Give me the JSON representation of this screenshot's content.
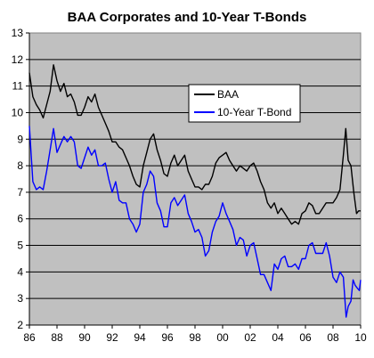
{
  "chart_data": {
    "type": "line",
    "title": "BAA Corporates and 10-Year T-Bonds",
    "xlabel": "",
    "ylabel": "",
    "x_ticks": [
      "86",
      "88",
      "90",
      "92",
      "94",
      "96",
      "98",
      "00",
      "02",
      "04",
      "06",
      "08",
      "10"
    ],
    "y_ticks": [
      "2",
      "3",
      "4",
      "5",
      "6",
      "7",
      "8",
      "9",
      "10",
      "11",
      "12",
      "13"
    ],
    "xlim": [
      1986,
      2010
    ],
    "ylim": [
      2,
      13
    ],
    "grid": "horizontal",
    "plot_background": "#c0c0c0",
    "legend_position": "upper-right",
    "series": [
      {
        "name": "BAA",
        "color": "#000000",
        "points": [
          [
            1986.0,
            11.5
          ],
          [
            1986.25,
            10.6
          ],
          [
            1986.5,
            10.3
          ],
          [
            1986.75,
            10.1
          ],
          [
            1987.0,
            9.8
          ],
          [
            1987.25,
            10.3
          ],
          [
            1987.5,
            10.8
          ],
          [
            1987.75,
            11.8
          ],
          [
            1988.0,
            11.2
          ],
          [
            1988.25,
            10.8
          ],
          [
            1988.5,
            11.1
          ],
          [
            1988.75,
            10.6
          ],
          [
            1989.0,
            10.7
          ],
          [
            1989.25,
            10.4
          ],
          [
            1989.5,
            9.9
          ],
          [
            1989.75,
            9.9
          ],
          [
            1990.0,
            10.2
          ],
          [
            1990.25,
            10.6
          ],
          [
            1990.5,
            10.4
          ],
          [
            1990.75,
            10.7
          ],
          [
            1991.0,
            10.2
          ],
          [
            1991.25,
            9.9
          ],
          [
            1991.5,
            9.6
          ],
          [
            1991.75,
            9.3
          ],
          [
            1992.0,
            8.9
          ],
          [
            1992.25,
            8.9
          ],
          [
            1992.5,
            8.7
          ],
          [
            1992.75,
            8.6
          ],
          [
            1993.0,
            8.3
          ],
          [
            1993.25,
            8.0
          ],
          [
            1993.5,
            7.6
          ],
          [
            1993.75,
            7.3
          ],
          [
            1994.0,
            7.2
          ],
          [
            1994.25,
            8.0
          ],
          [
            1994.5,
            8.5
          ],
          [
            1994.75,
            9.0
          ],
          [
            1995.0,
            9.2
          ],
          [
            1995.25,
            8.6
          ],
          [
            1995.5,
            8.2
          ],
          [
            1995.75,
            7.7
          ],
          [
            1996.0,
            7.6
          ],
          [
            1996.25,
            8.1
          ],
          [
            1996.5,
            8.4
          ],
          [
            1996.75,
            8.0
          ],
          [
            1997.0,
            8.2
          ],
          [
            1997.25,
            8.4
          ],
          [
            1997.5,
            7.8
          ],
          [
            1997.75,
            7.5
          ],
          [
            1998.0,
            7.2
          ],
          [
            1998.25,
            7.2
          ],
          [
            1998.5,
            7.1
          ],
          [
            1998.75,
            7.3
          ],
          [
            1999.0,
            7.3
          ],
          [
            1999.25,
            7.6
          ],
          [
            1999.5,
            8.1
          ],
          [
            1999.75,
            8.3
          ],
          [
            2000.0,
            8.4
          ],
          [
            2000.25,
            8.5
          ],
          [
            2000.5,
            8.2
          ],
          [
            2000.75,
            8.0
          ],
          [
            2001.0,
            7.8
          ],
          [
            2001.25,
            8.0
          ],
          [
            2001.5,
            7.9
          ],
          [
            2001.75,
            7.8
          ],
          [
            2002.0,
            8.0
          ],
          [
            2002.25,
            8.1
          ],
          [
            2002.5,
            7.8
          ],
          [
            2002.75,
            7.4
          ],
          [
            2003.0,
            7.1
          ],
          [
            2003.25,
            6.6
          ],
          [
            2003.5,
            6.4
          ],
          [
            2003.75,
            6.6
          ],
          [
            2004.0,
            6.2
          ],
          [
            2004.25,
            6.4
          ],
          [
            2004.5,
            6.2
          ],
          [
            2004.75,
            6.0
          ],
          [
            2005.0,
            5.8
          ],
          [
            2005.25,
            5.9
          ],
          [
            2005.5,
            5.8
          ],
          [
            2005.75,
            6.2
          ],
          [
            2006.0,
            6.3
          ],
          [
            2006.25,
            6.6
          ],
          [
            2006.5,
            6.5
          ],
          [
            2006.75,
            6.2
          ],
          [
            2007.0,
            6.2
          ],
          [
            2007.25,
            6.4
          ],
          [
            2007.5,
            6.6
          ],
          [
            2007.75,
            6.6
          ],
          [
            2008.0,
            6.6
          ],
          [
            2008.25,
            6.8
          ],
          [
            2008.5,
            7.1
          ],
          [
            2008.75,
            8.4
          ],
          [
            2008.92,
            9.4
          ],
          [
            2009.1,
            8.2
          ],
          [
            2009.3,
            8.0
          ],
          [
            2009.5,
            7.0
          ],
          [
            2009.7,
            6.2
          ],
          [
            2009.85,
            6.3
          ],
          [
            2010.0,
            6.3
          ]
        ]
      },
      {
        "name": "10-Year T-Bond",
        "color": "#0000ff",
        "points": [
          [
            1986.0,
            9.5
          ],
          [
            1986.25,
            7.4
          ],
          [
            1986.5,
            7.1
          ],
          [
            1986.75,
            7.2
          ],
          [
            1987.0,
            7.1
          ],
          [
            1987.25,
            7.8
          ],
          [
            1987.5,
            8.6
          ],
          [
            1987.75,
            9.4
          ],
          [
            1988.0,
            8.5
          ],
          [
            1988.25,
            8.8
          ],
          [
            1988.5,
            9.1
          ],
          [
            1988.75,
            8.9
          ],
          [
            1989.0,
            9.1
          ],
          [
            1989.25,
            8.9
          ],
          [
            1989.5,
            8.0
          ],
          [
            1989.75,
            7.9
          ],
          [
            1990.0,
            8.3
          ],
          [
            1990.25,
            8.7
          ],
          [
            1990.5,
            8.4
          ],
          [
            1990.75,
            8.6
          ],
          [
            1991.0,
            8.0
          ],
          [
            1991.25,
            8.0
          ],
          [
            1991.5,
            8.1
          ],
          [
            1991.75,
            7.5
          ],
          [
            1992.0,
            7.0
          ],
          [
            1992.25,
            7.4
          ],
          [
            1992.5,
            6.7
          ],
          [
            1992.75,
            6.6
          ],
          [
            1993.0,
            6.6
          ],
          [
            1993.25,
            6.0
          ],
          [
            1993.5,
            5.8
          ],
          [
            1993.75,
            5.5
          ],
          [
            1994.0,
            5.8
          ],
          [
            1994.25,
            7.0
          ],
          [
            1994.5,
            7.3
          ],
          [
            1994.75,
            7.8
          ],
          [
            1995.0,
            7.6
          ],
          [
            1995.25,
            6.6
          ],
          [
            1995.5,
            6.3
          ],
          [
            1995.75,
            5.7
          ],
          [
            1996.0,
            5.7
          ],
          [
            1996.25,
            6.6
          ],
          [
            1996.5,
            6.8
          ],
          [
            1996.75,
            6.5
          ],
          [
            1997.0,
            6.7
          ],
          [
            1997.25,
            6.9
          ],
          [
            1997.5,
            6.2
          ],
          [
            1997.75,
            5.9
          ],
          [
            1998.0,
            5.5
          ],
          [
            1998.25,
            5.6
          ],
          [
            1998.5,
            5.3
          ],
          [
            1998.75,
            4.6
          ],
          [
            1999.0,
            4.8
          ],
          [
            1999.25,
            5.5
          ],
          [
            1999.5,
            5.9
          ],
          [
            1999.75,
            6.1
          ],
          [
            2000.0,
            6.6
          ],
          [
            2000.25,
            6.2
          ],
          [
            2000.5,
            5.9
          ],
          [
            2000.75,
            5.6
          ],
          [
            2001.0,
            5.0
          ],
          [
            2001.25,
            5.3
          ],
          [
            2001.5,
            5.2
          ],
          [
            2001.75,
            4.6
          ],
          [
            2002.0,
            5.0
          ],
          [
            2002.25,
            5.1
          ],
          [
            2002.5,
            4.5
          ],
          [
            2002.75,
            3.9
          ],
          [
            2003.0,
            3.9
          ],
          [
            2003.25,
            3.6
          ],
          [
            2003.5,
            3.3
          ],
          [
            2003.75,
            4.3
          ],
          [
            2004.0,
            4.1
          ],
          [
            2004.25,
            4.5
          ],
          [
            2004.5,
            4.6
          ],
          [
            2004.75,
            4.2
          ],
          [
            2005.0,
            4.2
          ],
          [
            2005.25,
            4.3
          ],
          [
            2005.5,
            4.1
          ],
          [
            2005.75,
            4.5
          ],
          [
            2006.0,
            4.5
          ],
          [
            2006.25,
            5.0
          ],
          [
            2006.5,
            5.1
          ],
          [
            2006.75,
            4.7
          ],
          [
            2007.0,
            4.7
          ],
          [
            2007.25,
            4.7
          ],
          [
            2007.5,
            5.1
          ],
          [
            2007.75,
            4.6
          ],
          [
            2008.0,
            3.8
          ],
          [
            2008.25,
            3.6
          ],
          [
            2008.5,
            4.0
          ],
          [
            2008.75,
            3.8
          ],
          [
            2008.95,
            2.3
          ],
          [
            2009.1,
            2.7
          ],
          [
            2009.3,
            2.9
          ],
          [
            2009.45,
            3.7
          ],
          [
            2009.6,
            3.5
          ],
          [
            2009.75,
            3.4
          ],
          [
            2009.9,
            3.3
          ],
          [
            2010.0,
            3.7
          ]
        ]
      }
    ]
  }
}
